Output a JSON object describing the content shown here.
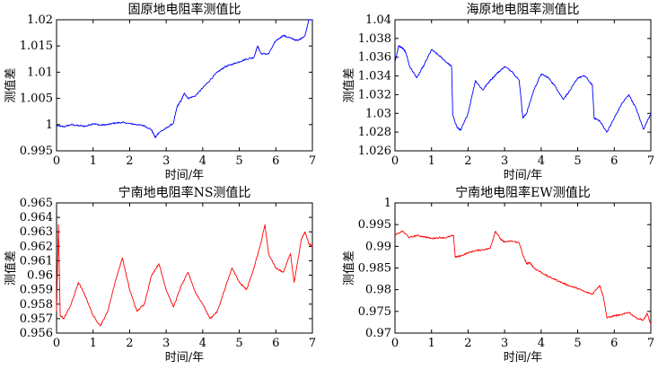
{
  "chart_data": [
    {
      "type": "line",
      "title": "固原地电阻率测值比",
      "xlabel": "时间/年",
      "ylabel": "测值差",
      "xlim": [
        0,
        7
      ],
      "ylim": [
        0.995,
        1.02
      ],
      "xticks": [
        "0",
        "1",
        "2",
        "3",
        "4",
        "5",
        "6",
        "7"
      ],
      "yticks": [
        "0.995",
        "1",
        "1.005",
        "1.01",
        "1.015",
        "1.02"
      ],
      "grid": false,
      "color": "#0000ff",
      "x": [
        0,
        0.2,
        0.4,
        0.6,
        0.8,
        1.0,
        1.2,
        1.4,
        1.6,
        1.8,
        2.0,
        2.2,
        2.4,
        2.6,
        2.7,
        2.8,
        3.0,
        3.2,
        3.3,
        3.4,
        3.5,
        3.6,
        3.8,
        4.0,
        4.2,
        4.4,
        4.6,
        4.8,
        5.0,
        5.2,
        5.4,
        5.5,
        5.6,
        5.8,
        6.0,
        6.2,
        6.4,
        6.6,
        6.8,
        6.9,
        7.0
      ],
      "y": [
        0.9998,
        0.9996,
        1.0,
        0.9998,
        0.9997,
        1.0002,
        0.9999,
        1.0,
        1.0003,
        1.0004,
        1.0002,
        1.0,
        0.9998,
        0.999,
        0.9975,
        0.9985,
        0.9993,
        1.0003,
        1.0035,
        1.0045,
        1.006,
        1.005,
        1.0055,
        1.007,
        1.0085,
        1.01,
        1.011,
        1.0115,
        1.012,
        1.0125,
        1.0128,
        1.015,
        1.0135,
        1.0135,
        1.016,
        1.017,
        1.0165,
        1.016,
        1.017,
        1.02,
        1.0201
      ]
    },
    {
      "type": "line",
      "title": "海原地电阻率测值比",
      "xlabel": "时间/年",
      "ylabel": "测值差",
      "xlim": [
        0,
        7
      ],
      "ylim": [
        1.026,
        1.04
      ],
      "xticks": [
        "0",
        "1",
        "2",
        "3",
        "4",
        "5",
        "6",
        "7"
      ],
      "yticks": [
        "1.026",
        "1.028",
        "1.03",
        "1.032",
        "1.034",
        "1.036",
        "1.038",
        "1.04"
      ],
      "grid": false,
      "color": "#0000ff",
      "x": [
        0,
        0.1,
        0.2,
        0.3,
        0.4,
        0.6,
        0.8,
        1.0,
        1.2,
        1.4,
        1.55,
        1.58,
        1.7,
        1.8,
        2.0,
        2.2,
        2.4,
        2.6,
        2.8,
        3.0,
        3.2,
        3.4,
        3.5,
        3.6,
        3.8,
        4.0,
        4.2,
        4.4,
        4.6,
        4.8,
        5.0,
        5.2,
        5.4,
        5.45,
        5.6,
        5.8,
        6.0,
        6.2,
        6.4,
        6.6,
        6.8,
        7.0
      ],
      "y": [
        1.0355,
        1.0372,
        1.037,
        1.0365,
        1.035,
        1.0338,
        1.0352,
        1.0368,
        1.0362,
        1.0355,
        1.035,
        1.0298,
        1.0285,
        1.0282,
        1.03,
        1.0335,
        1.0325,
        1.0335,
        1.0343,
        1.035,
        1.0345,
        1.0335,
        1.0295,
        1.03,
        1.0325,
        1.0342,
        1.0338,
        1.0328,
        1.0315,
        1.0325,
        1.0338,
        1.034,
        1.033,
        1.0295,
        1.0292,
        1.028,
        1.0295,
        1.031,
        1.032,
        1.0305,
        1.0283,
        1.03
      ]
    },
    {
      "type": "line",
      "title": "宁南地电阻率NS测值比",
      "xlabel": "时间/年",
      "ylabel": "测值差",
      "xlim": [
        0,
        7
      ],
      "ylim": [
        0.956,
        0.965
      ],
      "xticks": [
        "0",
        "1",
        "2",
        "3",
        "4",
        "5",
        "6",
        "7"
      ],
      "yticks": [
        "0.956",
        "0.957",
        "0.958",
        "0.959",
        "0.96",
        "0.961",
        "0.962",
        "0.963",
        "0.964",
        "0.965"
      ],
      "grid": false,
      "color": "#ff0000",
      "x": [
        0,
        0.05,
        0.1,
        0.2,
        0.4,
        0.6,
        0.8,
        1.0,
        1.2,
        1.4,
        1.6,
        1.8,
        2.0,
        2.2,
        2.4,
        2.6,
        2.8,
        3.0,
        3.2,
        3.4,
        3.6,
        3.8,
        4.0,
        4.2,
        4.4,
        4.6,
        4.8,
        5.0,
        5.2,
        5.4,
        5.6,
        5.7,
        5.8,
        6.0,
        6.2,
        6.4,
        6.5,
        6.6,
        6.7,
        6.8,
        6.9,
        7.0
      ],
      "y": [
        0.9575,
        0.9635,
        0.9572,
        0.957,
        0.958,
        0.9595,
        0.9585,
        0.9572,
        0.9565,
        0.9575,
        0.9595,
        0.9612,
        0.959,
        0.9575,
        0.958,
        0.96,
        0.9608,
        0.959,
        0.9578,
        0.9592,
        0.9602,
        0.9588,
        0.958,
        0.957,
        0.9575,
        0.959,
        0.9605,
        0.9595,
        0.959,
        0.9605,
        0.9623,
        0.9635,
        0.9615,
        0.9605,
        0.9602,
        0.9615,
        0.9595,
        0.961,
        0.9625,
        0.963,
        0.9622,
        0.962
      ]
    },
    {
      "type": "line",
      "title": "宁南地电阻率EW测值比",
      "xlabel": "时间/年",
      "ylabel": "测值差",
      "xlim": [
        0,
        7
      ],
      "ylim": [
        0.97,
        1.0
      ],
      "xticks": [
        "0",
        "1",
        "2",
        "3",
        "4",
        "5",
        "6",
        "7"
      ],
      "yticks": [
        "0.97",
        "0.975",
        "0.98",
        "0.985",
        "0.99",
        "0.995",
        "1"
      ],
      "grid": false,
      "color": "#ff0000",
      "x": [
        0,
        0.2,
        0.4,
        0.6,
        0.8,
        1.0,
        1.2,
        1.4,
        1.6,
        1.65,
        1.8,
        2.0,
        2.2,
        2.4,
        2.6,
        2.75,
        2.9,
        3.0,
        3.2,
        3.4,
        3.5,
        3.6,
        3.7,
        3.8,
        4.0,
        4.2,
        4.4,
        4.6,
        4.8,
        5.0,
        5.2,
        5.4,
        5.6,
        5.7,
        5.8,
        6.0,
        6.2,
        6.4,
        6.6,
        6.8,
        6.9,
        7.0
      ],
      "y": [
        0.9925,
        0.9935,
        0.992,
        0.9925,
        0.9922,
        0.9918,
        0.992,
        0.992,
        0.9925,
        0.9875,
        0.9878,
        0.9885,
        0.989,
        0.9892,
        0.9895,
        0.9935,
        0.9915,
        0.991,
        0.9912,
        0.9908,
        0.988,
        0.986,
        0.9862,
        0.985,
        0.984,
        0.983,
        0.9823,
        0.9815,
        0.9808,
        0.9803,
        0.9795,
        0.979,
        0.981,
        0.9785,
        0.9735,
        0.974,
        0.9742,
        0.9748,
        0.9735,
        0.973,
        0.9745,
        0.972
      ]
    }
  ]
}
